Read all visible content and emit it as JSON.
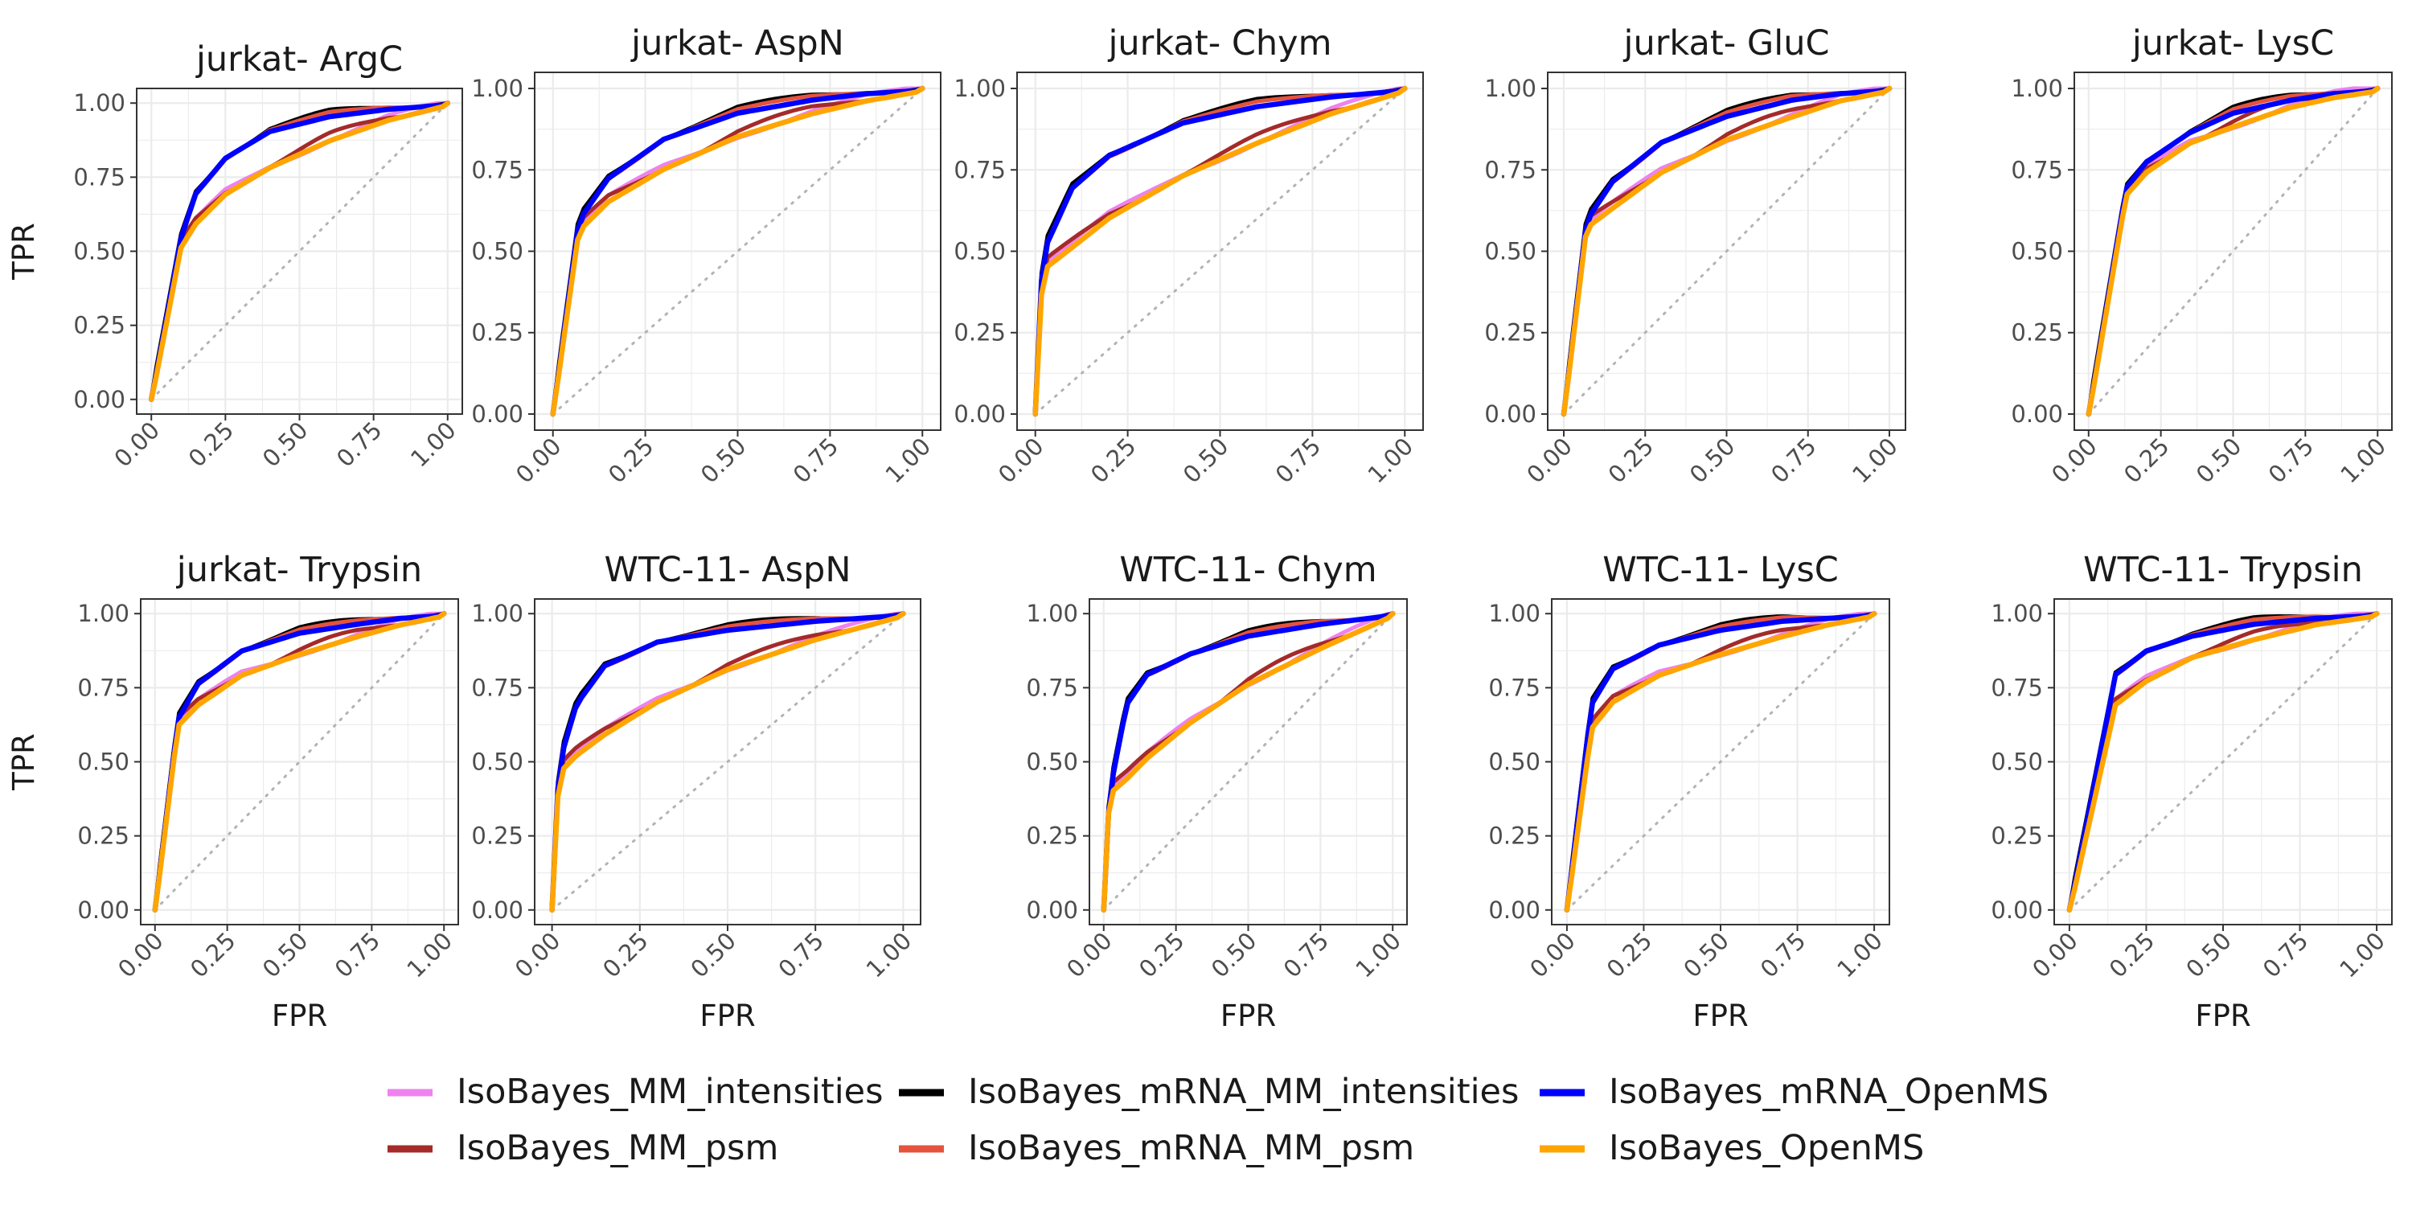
{
  "chart_data": {
    "type": "line",
    "xlabel": "FPR",
    "ylabel": "TPR",
    "xlim": [
      0,
      1
    ],
    "ylim": [
      0,
      1
    ],
    "x_ticks": [
      "0.00",
      "0.25",
      "0.50",
      "0.75",
      "1.00"
    ],
    "y_ticks": [
      "0.00",
      "0.25",
      "0.50",
      "0.75",
      "1.00"
    ],
    "grid": true,
    "reference_line": "diagonal dotted gray",
    "legend_position": "bottom",
    "series": [
      {
        "name": "IsoBayes_MM_intensities",
        "color": "#ee82ee"
      },
      {
        "name": "IsoBayes_MM_psm",
        "color": "#a52a2a"
      },
      {
        "name": "IsoBayes_mRNA_MM_intensities",
        "color": "#000000"
      },
      {
        "name": "IsoBayes_mRNA_MM_psm",
        "color": "#e5533d"
      },
      {
        "name": "IsoBayes_mRNA_OpenMS",
        "color": "#0000ff"
      },
      {
        "name": "IsoBayes_OpenMS",
        "color": "#ffa500"
      }
    ],
    "panels": [
      {
        "title": "jurkat- ArgC",
        "high": [
          [
            0,
            0
          ],
          [
            0.1,
            0.55
          ],
          [
            0.15,
            0.7
          ],
          [
            0.25,
            0.82
          ],
          [
            0.4,
            0.91
          ],
          [
            0.6,
            0.96
          ],
          [
            0.8,
            0.985
          ],
          [
            1,
            1
          ]
        ],
        "low": [
          [
            0,
            0
          ],
          [
            0.1,
            0.52
          ],
          [
            0.15,
            0.6
          ],
          [
            0.25,
            0.7
          ],
          [
            0.4,
            0.79
          ],
          [
            0.6,
            0.88
          ],
          [
            0.8,
            0.95
          ],
          [
            1,
            1
          ]
        ]
      },
      {
        "title": "jurkat- AspN",
        "high": [
          [
            0,
            0
          ],
          [
            0.07,
            0.6
          ],
          [
            0.15,
            0.73
          ],
          [
            0.3,
            0.85
          ],
          [
            0.5,
            0.93
          ],
          [
            0.7,
            0.97
          ],
          [
            0.85,
            0.99
          ],
          [
            1,
            1
          ]
        ],
        "low": [
          [
            0,
            0
          ],
          [
            0.07,
            0.57
          ],
          [
            0.15,
            0.66
          ],
          [
            0.3,
            0.76
          ],
          [
            0.5,
            0.86
          ],
          [
            0.7,
            0.93
          ],
          [
            0.85,
            0.97
          ],
          [
            1,
            1
          ]
        ]
      },
      {
        "title": "jurkat- Chym",
        "high": [
          [
            0,
            0
          ],
          [
            0.02,
            0.5
          ],
          [
            0.1,
            0.7
          ],
          [
            0.2,
            0.8
          ],
          [
            0.4,
            0.9
          ],
          [
            0.6,
            0.95
          ],
          [
            0.8,
            0.98
          ],
          [
            1,
            1
          ]
        ],
        "low": [
          [
            0,
            0
          ],
          [
            0.02,
            0.45
          ],
          [
            0.1,
            0.52
          ],
          [
            0.2,
            0.61
          ],
          [
            0.4,
            0.74
          ],
          [
            0.6,
            0.84
          ],
          [
            0.8,
            0.93
          ],
          [
            1,
            1
          ]
        ]
      },
      {
        "title": "jurkat- GluC",
        "high": [
          [
            0,
            0
          ],
          [
            0.07,
            0.6
          ],
          [
            0.15,
            0.72
          ],
          [
            0.3,
            0.84
          ],
          [
            0.5,
            0.92
          ],
          [
            0.7,
            0.97
          ],
          [
            0.85,
            0.99
          ],
          [
            1,
            1
          ]
        ],
        "low": [
          [
            0,
            0
          ],
          [
            0.07,
            0.58
          ],
          [
            0.15,
            0.64
          ],
          [
            0.3,
            0.75
          ],
          [
            0.5,
            0.85
          ],
          [
            0.7,
            0.92
          ],
          [
            0.85,
            0.97
          ],
          [
            1,
            1
          ]
        ]
      },
      {
        "title": "jurkat- LysC",
        "high": [
          [
            0,
            0
          ],
          [
            0.13,
            0.7
          ],
          [
            0.2,
            0.78
          ],
          [
            0.35,
            0.87
          ],
          [
            0.5,
            0.93
          ],
          [
            0.7,
            0.97
          ],
          [
            0.85,
            0.99
          ],
          [
            1,
            1
          ]
        ],
        "low": [
          [
            0,
            0
          ],
          [
            0.13,
            0.68
          ],
          [
            0.2,
            0.75
          ],
          [
            0.35,
            0.84
          ],
          [
            0.5,
            0.89
          ],
          [
            0.7,
            0.95
          ],
          [
            0.85,
            0.98
          ],
          [
            1,
            1
          ]
        ]
      },
      {
        "title": "jurkat- Trypsin",
        "high": [
          [
            0,
            0
          ],
          [
            0.08,
            0.65
          ],
          [
            0.15,
            0.77
          ],
          [
            0.3,
            0.88
          ],
          [
            0.5,
            0.94
          ],
          [
            0.7,
            0.97
          ],
          [
            0.85,
            0.99
          ],
          [
            1,
            1
          ]
        ],
        "low": [
          [
            0,
            0
          ],
          [
            0.08,
            0.63
          ],
          [
            0.15,
            0.7
          ],
          [
            0.3,
            0.8
          ],
          [
            0.5,
            0.87
          ],
          [
            0.7,
            0.93
          ],
          [
            0.85,
            0.97
          ],
          [
            1,
            1
          ]
        ]
      },
      {
        "title": "WTC-11- AspN",
        "high": [
          [
            0,
            0
          ],
          [
            0.02,
            0.5
          ],
          [
            0.07,
            0.7
          ],
          [
            0.15,
            0.83
          ],
          [
            0.3,
            0.91
          ],
          [
            0.5,
            0.95
          ],
          [
            0.75,
            0.98
          ],
          [
            1,
            1
          ]
        ],
        "low": [
          [
            0,
            0
          ],
          [
            0.02,
            0.47
          ],
          [
            0.07,
            0.53
          ],
          [
            0.15,
            0.6
          ],
          [
            0.3,
            0.71
          ],
          [
            0.5,
            0.82
          ],
          [
            0.75,
            0.92
          ],
          [
            1,
            1
          ]
        ]
      },
      {
        "title": "WTC-11- Chym",
        "high": [
          [
            0,
            0
          ],
          [
            0.02,
            0.4
          ],
          [
            0.08,
            0.7
          ],
          [
            0.15,
            0.8
          ],
          [
            0.3,
            0.87
          ],
          [
            0.5,
            0.93
          ],
          [
            0.75,
            0.97
          ],
          [
            1,
            1
          ]
        ],
        "low": [
          [
            0,
            0
          ],
          [
            0.02,
            0.4
          ],
          [
            0.08,
            0.45
          ],
          [
            0.15,
            0.52
          ],
          [
            0.3,
            0.64
          ],
          [
            0.5,
            0.77
          ],
          [
            0.75,
            0.89
          ],
          [
            1,
            1
          ]
        ]
      },
      {
        "title": "WTC-11- LysC",
        "high": [
          [
            0,
            0
          ],
          [
            0.08,
            0.7
          ],
          [
            0.15,
            0.82
          ],
          [
            0.3,
            0.9
          ],
          [
            0.5,
            0.95
          ],
          [
            0.7,
            0.98
          ],
          [
            0.85,
            0.99
          ],
          [
            1,
            1
          ]
        ],
        "low": [
          [
            0,
            0
          ],
          [
            0.08,
            0.62
          ],
          [
            0.15,
            0.71
          ],
          [
            0.3,
            0.8
          ],
          [
            0.5,
            0.87
          ],
          [
            0.7,
            0.93
          ],
          [
            0.85,
            0.97
          ],
          [
            1,
            1
          ]
        ]
      },
      {
        "title": "WTC-11- Trypsin",
        "high": [
          [
            0,
            0
          ],
          [
            0.15,
            0.8
          ],
          [
            0.25,
            0.88
          ],
          [
            0.4,
            0.93
          ],
          [
            0.6,
            0.97
          ],
          [
            0.8,
            0.99
          ],
          [
            1,
            1
          ]
        ],
        "low": [
          [
            0,
            0
          ],
          [
            0.15,
            0.7
          ],
          [
            0.25,
            0.78
          ],
          [
            0.4,
            0.86
          ],
          [
            0.6,
            0.92
          ],
          [
            0.8,
            0.97
          ],
          [
            1,
            1
          ]
        ]
      }
    ]
  }
}
